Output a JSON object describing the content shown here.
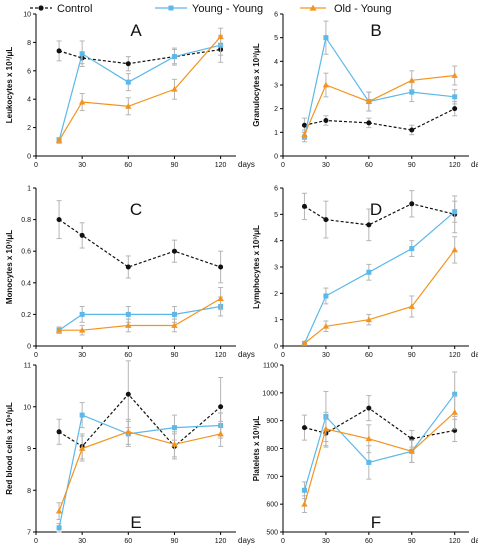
{
  "legend": [
    {
      "key": "control",
      "label": "Control"
    },
    {
      "key": "young_young",
      "label": "Young - Young"
    },
    {
      "key": "old_young",
      "label": "Old - Young"
    }
  ],
  "colors": {
    "control": "#111111",
    "young_young": "#5bb8ea",
    "old_young": "#f4941f",
    "error_bar": "#b5b5b5"
  },
  "chart_data": [
    {
      "panel": "A",
      "type": "line",
      "ylabel": "Leukocytes x 10³/μL",
      "xunit": "days",
      "xlim": [
        0,
        130
      ],
      "ylim": [
        0,
        10
      ],
      "xticks": [
        0,
        30,
        60,
        90,
        120
      ],
      "yticks": [
        0,
        2,
        4,
        6,
        8,
        10
      ],
      "x": [
        15,
        30,
        60,
        90,
        120
      ],
      "series": [
        {
          "name": "Control",
          "key": "control",
          "values": [
            7.4,
            6.9,
            6.5,
            7.0,
            7.5
          ],
          "err": [
            0.7,
            0.4,
            0.5,
            0.5,
            0.9
          ]
        },
        {
          "name": "Young - Young",
          "key": "young_young",
          "values": [
            1.1,
            7.2,
            5.2,
            7.0,
            7.8
          ],
          "err": [
            0.2,
            0.9,
            0.6,
            0.6,
            0.7
          ]
        },
        {
          "name": "Old - Young",
          "key": "old_young",
          "values": [
            1.1,
            3.8,
            3.5,
            4.7,
            8.4
          ],
          "err": [
            0.2,
            0.6,
            0.6,
            0.7,
            0.6
          ]
        }
      ]
    },
    {
      "panel": "B",
      "type": "line",
      "ylabel": "Granulocytes x 10³/μL",
      "xunit": "days",
      "xlim": [
        0,
        130
      ],
      "ylim": [
        0,
        6
      ],
      "xticks": [
        0,
        30,
        60,
        90,
        120
      ],
      "yticks": [
        0,
        1,
        2,
        3,
        4,
        5,
        6
      ],
      "x": [
        15,
        30,
        60,
        90,
        120
      ],
      "series": [
        {
          "name": "Control",
          "key": "control",
          "values": [
            1.3,
            1.5,
            1.4,
            1.1,
            2.0
          ],
          "err": [
            0.3,
            0.2,
            0.2,
            0.2,
            0.3
          ]
        },
        {
          "name": "Young - Young",
          "key": "young_young",
          "values": [
            0.8,
            5.0,
            2.3,
            2.7,
            2.5
          ],
          "err": [
            0.2,
            0.7,
            0.4,
            0.4,
            0.3
          ]
        },
        {
          "name": "Old - Young",
          "key": "old_young",
          "values": [
            0.9,
            3.0,
            2.3,
            3.2,
            3.4
          ],
          "err": [
            0.2,
            0.5,
            0.4,
            0.4,
            0.4
          ]
        }
      ]
    },
    {
      "panel": "C",
      "type": "line",
      "ylabel": "Monocytes x 10³/μL",
      "xunit": "days",
      "xlim": [
        0,
        130
      ],
      "ylim": [
        0,
        1.0
      ],
      "xticks": [
        0,
        30,
        60,
        90,
        120
      ],
      "yticks": [
        0,
        0.2,
        0.4,
        0.6,
        0.8,
        1.0
      ],
      "x": [
        15,
        30,
        60,
        90,
        120
      ],
      "series": [
        {
          "name": "Control",
          "key": "control",
          "values": [
            0.8,
            0.7,
            0.5,
            0.6,
            0.5
          ],
          "err": [
            0.12,
            0.08,
            0.07,
            0.07,
            0.1
          ]
        },
        {
          "name": "Young - Young",
          "key": "young_young",
          "values": [
            0.1,
            0.2,
            0.2,
            0.2,
            0.25
          ],
          "err": [
            0.02,
            0.05,
            0.05,
            0.05,
            0.06
          ]
        },
        {
          "name": "Old - Young",
          "key": "old_young",
          "values": [
            0.1,
            0.1,
            0.13,
            0.13,
            0.3
          ],
          "err": [
            0.02,
            0.03,
            0.04,
            0.04,
            0.07
          ]
        }
      ]
    },
    {
      "panel": "D",
      "type": "line",
      "ylabel": "Lymphocytes x 10³/μL",
      "xunit": "days",
      "xlim": [
        0,
        130
      ],
      "ylim": [
        0,
        6
      ],
      "xticks": [
        0,
        30,
        60,
        90,
        120
      ],
      "yticks": [
        0,
        1,
        2,
        3,
        4,
        5,
        6
      ],
      "x": [
        15,
        30,
        60,
        90,
        120
      ],
      "series": [
        {
          "name": "Control",
          "key": "control",
          "values": [
            5.3,
            4.8,
            4.6,
            5.4,
            5.0
          ],
          "err": [
            0.5,
            0.7,
            0.6,
            0.5,
            0.7
          ]
        },
        {
          "name": "Young - Young",
          "key": "young_young",
          "values": [
            0.1,
            1.9,
            2.8,
            3.7,
            5.1
          ],
          "err": [
            0.05,
            0.3,
            0.3,
            0.3,
            0.4
          ]
        },
        {
          "name": "Old - Young",
          "key": "old_young",
          "values": [
            0.1,
            0.75,
            1.0,
            1.5,
            3.65
          ],
          "err": [
            0.05,
            0.2,
            0.2,
            0.4,
            0.5
          ]
        }
      ]
    },
    {
      "panel": "E",
      "type": "line",
      "ylabel": "Red blood cells x 10⁶/μL",
      "xunit": "days",
      "xlim": [
        0,
        130
      ],
      "ylim": [
        7,
        11
      ],
      "xticks": [
        0,
        30,
        60,
        90,
        120
      ],
      "yticks": [
        7,
        8,
        9,
        10,
        11
      ],
      "x": [
        15,
        30,
        60,
        90,
        120
      ],
      "series": [
        {
          "name": "Control",
          "key": "control",
          "values": [
            9.4,
            9.05,
            10.3,
            9.05,
            10.0
          ],
          "err": [
            0.3,
            0.3,
            0.8,
            0.3,
            0.7
          ]
        },
        {
          "name": "Young - Young",
          "key": "young_young",
          "values": [
            7.1,
            9.8,
            9.35,
            9.5,
            9.55
          ],
          "err": [
            0.1,
            0.3,
            0.3,
            0.3,
            0.3
          ]
        },
        {
          "name": "Old - Young",
          "key": "old_young",
          "values": [
            7.5,
            9.0,
            9.4,
            9.1,
            9.35
          ],
          "err": [
            0.2,
            0.3,
            0.3,
            0.3,
            0.3
          ]
        }
      ]
    },
    {
      "panel": "F",
      "type": "line",
      "ylabel": "Platelets x 10³/μL",
      "xunit": "days",
      "xlim": [
        0,
        130
      ],
      "ylim": [
        500,
        1100
      ],
      "xticks": [
        0,
        30,
        60,
        90,
        120
      ],
      "yticks": [
        500,
        600,
        700,
        800,
        900,
        1000,
        1100
      ],
      "x": [
        15,
        30,
        60,
        90,
        120
      ],
      "series": [
        {
          "name": "Control",
          "key": "control",
          "values": [
            875,
            855,
            945,
            835,
            865
          ],
          "err": [
            45,
            50,
            45,
            30,
            40
          ]
        },
        {
          "name": "Young - Young",
          "key": "young_young",
          "values": [
            650,
            915,
            750,
            790,
            995
          ],
          "err": [
            30,
            90,
            60,
            40,
            80
          ]
        },
        {
          "name": "Old - Young",
          "key": "old_young",
          "values": [
            600,
            870,
            835,
            790,
            930
          ],
          "err": [
            30,
            60,
            50,
            40,
            60
          ]
        }
      ]
    }
  ]
}
